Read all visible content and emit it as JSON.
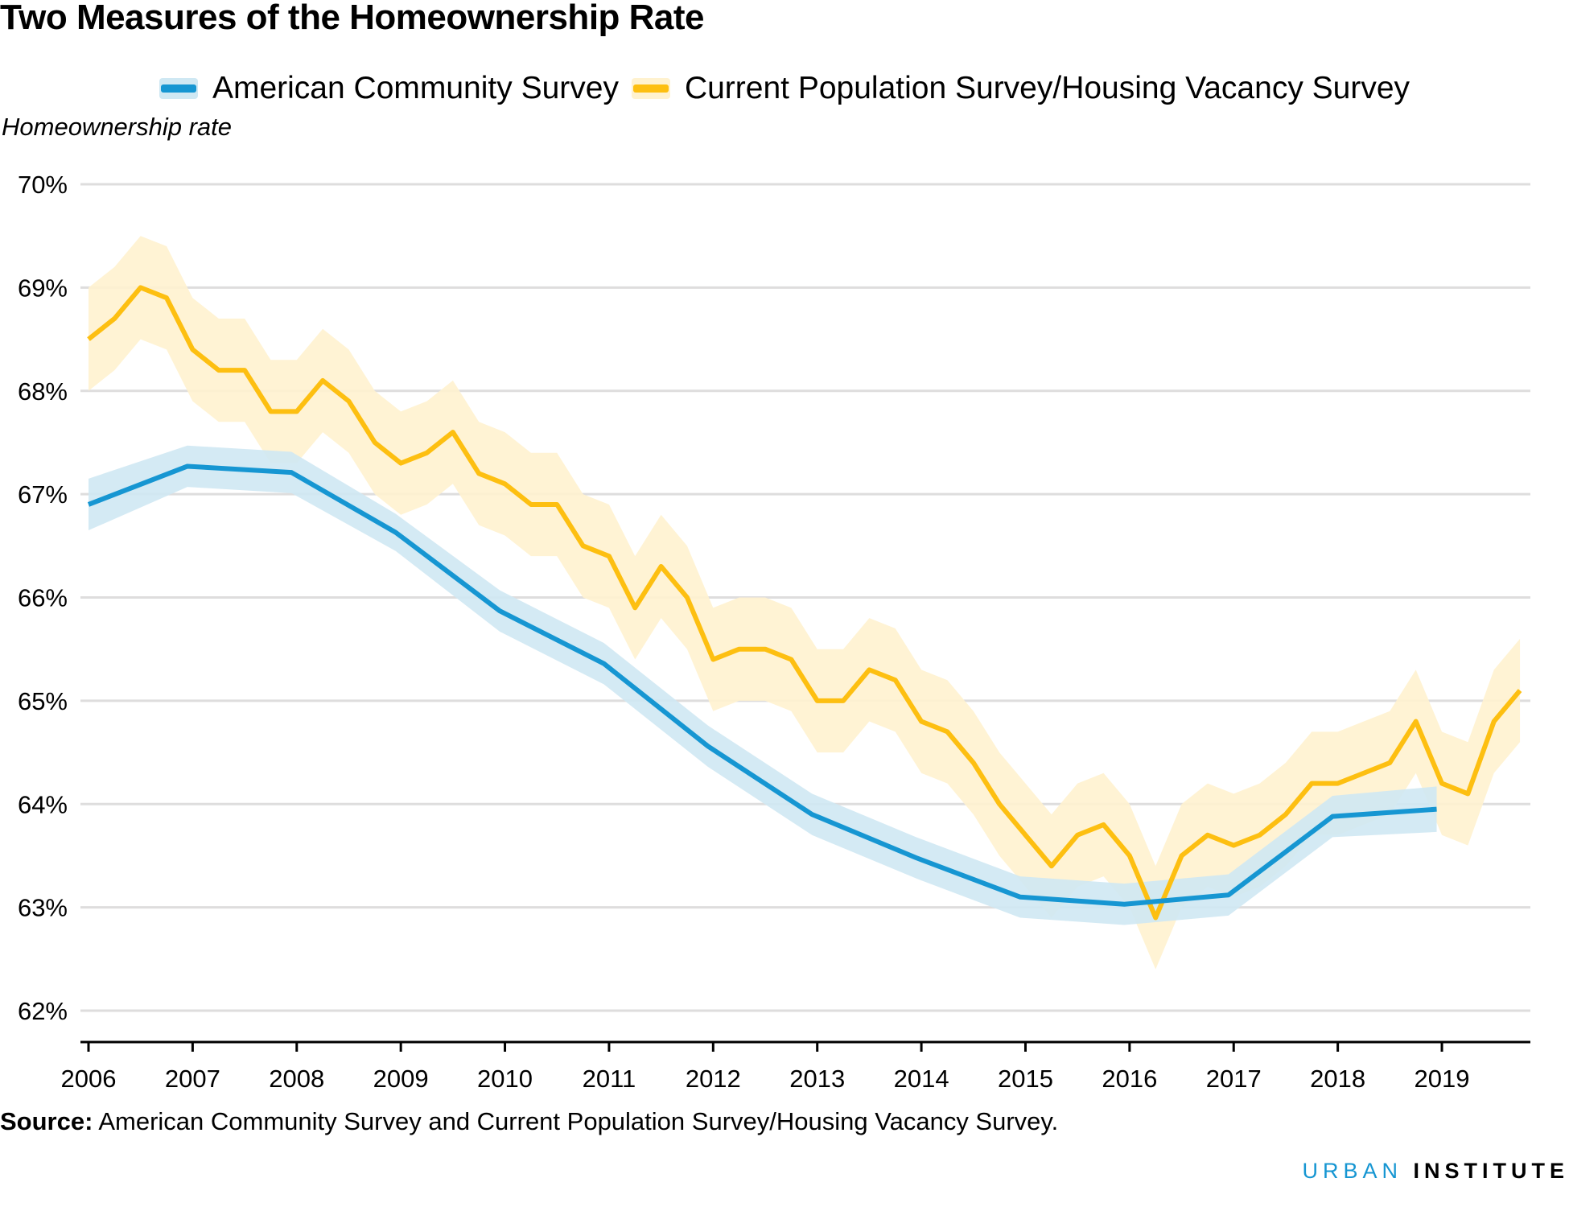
{
  "title": "Two Measures of the Homeownership Rate",
  "source_label": "Source:",
  "source_text": " American Community Survey and Current Population Survey/Housing Vacancy Survey.",
  "brand": {
    "urban": "URBAN",
    "institute": "INSTITUTE"
  },
  "colors": {
    "acs": "#1696d2",
    "acs_band": "#cfe8f3",
    "cps": "#fdbf11",
    "cps_band": "#fff2cf",
    "grid": "#dedddd"
  },
  "chart_data": {
    "type": "line",
    "title": "Two Measures of the Homeownership Rate",
    "ylabel": "Homeownership rate",
    "xlabel": "",
    "xlim": [
      2006,
      2019.85
    ],
    "ylim": [
      62,
      70
    ],
    "y_ticks": [
      62,
      63,
      64,
      65,
      66,
      67,
      68,
      69,
      70
    ],
    "y_tick_labels": [
      "62%",
      "63%",
      "64%",
      "65%",
      "66%",
      "67%",
      "68%",
      "69%",
      "70%"
    ],
    "x_ticks": [
      2006,
      2007,
      2008,
      2009,
      2010,
      2011,
      2012,
      2013,
      2014,
      2015,
      2016,
      2017,
      2018,
      2019
    ],
    "x_tick_labels": [
      "2006",
      "2007",
      "2008",
      "2009",
      "2010",
      "2011",
      "2012",
      "2013",
      "2014",
      "2015",
      "2016",
      "2017",
      "2018",
      "2019"
    ],
    "grid": true,
    "legend": "top-center",
    "series": [
      {
        "name": "American Community Survey",
        "x": [
          2006,
          2006.95,
          2007.95,
          2008.95,
          2009.95,
          2010.95,
          2011.95,
          2012.95,
          2013.95,
          2014.95,
          2015.95,
          2016.95,
          2017.95,
          2018.95
        ],
        "y": [
          66.9,
          67.27,
          67.21,
          66.63,
          65.87,
          65.36,
          64.56,
          63.9,
          63.48,
          63.1,
          63.03,
          63.12,
          63.88,
          63.95
        ],
        "lower": [
          66.65,
          67.07,
          67.01,
          66.45,
          65.67,
          65.16,
          64.36,
          63.7,
          63.28,
          62.9,
          62.83,
          62.92,
          63.68,
          63.73
        ],
        "upper": [
          67.15,
          67.47,
          67.41,
          66.81,
          66.07,
          65.56,
          64.76,
          64.1,
          63.68,
          63.3,
          63.23,
          63.32,
          64.08,
          64.17
        ]
      },
      {
        "name": "Current Population Survey/Housing Vacancy Survey",
        "x": [
          2006,
          2006.25,
          2006.5,
          2006.75,
          2007,
          2007.25,
          2007.5,
          2007.75,
          2008,
          2008.25,
          2008.5,
          2008.75,
          2009,
          2009.25,
          2009.5,
          2009.75,
          2010,
          2010.25,
          2010.5,
          2010.75,
          2011,
          2011.25,
          2011.5,
          2011.75,
          2012,
          2012.25,
          2012.5,
          2012.75,
          2013,
          2013.25,
          2013.5,
          2013.75,
          2014,
          2014.25,
          2014.5,
          2014.75,
          2015,
          2015.25,
          2015.5,
          2015.75,
          2016,
          2016.25,
          2016.5,
          2016.75,
          2017,
          2017.25,
          2017.5,
          2017.75,
          2018,
          2018.25,
          2018.5,
          2018.75,
          2019,
          2019.25,
          2019.5,
          2019.75
        ],
        "y": [
          68.5,
          68.7,
          69.0,
          68.9,
          68.4,
          68.2,
          68.2,
          67.8,
          67.8,
          68.1,
          67.9,
          67.5,
          67.3,
          67.4,
          67.6,
          67.2,
          67.1,
          66.9,
          66.9,
          66.5,
          66.4,
          65.9,
          66.3,
          66.0,
          65.4,
          65.5,
          65.5,
          65.4,
          65.0,
          65.0,
          65.3,
          65.2,
          64.8,
          64.7,
          64.4,
          64.0,
          63.7,
          63.4,
          63.7,
          63.8,
          63.5,
          62.9,
          63.5,
          63.7,
          63.6,
          63.7,
          63.9,
          64.2,
          64.2,
          64.3,
          64.4,
          64.8,
          64.2,
          64.1,
          64.8,
          65.1
        ],
        "band_half_width": 0.5
      }
    ]
  }
}
